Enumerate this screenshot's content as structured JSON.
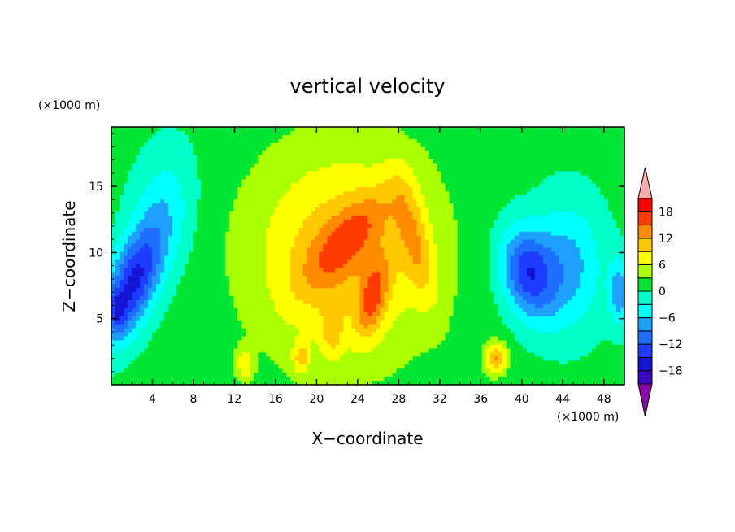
{
  "chart_data": {
    "type": "heatmap",
    "title": "vertical velocity",
    "xlabel": "X−coordinate",
    "ylabel": "Z−coordinate",
    "x_units": "(×1000 m)",
    "y_units": "(×1000 m)",
    "xlim": [
      0,
      50
    ],
    "ylim": [
      0,
      19.5
    ],
    "x_ticks": [
      4,
      8,
      12,
      16,
      20,
      24,
      28,
      32,
      36,
      40,
      44,
      48
    ],
    "x_tick_labels": [
      "4",
      "8",
      "12",
      "16",
      "20",
      "24",
      "28",
      "32",
      "36",
      "40",
      "44",
      "48"
    ],
    "y_ticks": [
      5,
      10,
      15
    ],
    "y_tick_labels": [
      "5",
      "10",
      "15"
    ],
    "colorbar": {
      "levels": [
        -21,
        -18,
        -15,
        -12,
        -9,
        -6,
        -3,
        0,
        3,
        6,
        9,
        12,
        15,
        18,
        21
      ],
      "tick_values": [
        -18,
        -12,
        -6,
        0,
        6,
        12,
        18
      ],
      "tick_labels": [
        "−18",
        "−12",
        "−6",
        "0",
        "6",
        "12",
        "18"
      ],
      "colors": [
        "#8a0aa8",
        "#3a0ac0",
        "#1414d2",
        "#1e3cff",
        "#1e6eff",
        "#1ea0ff",
        "#00ffff",
        "#00ffc8",
        "#00e632",
        "#aaff00",
        "#ffff00",
        "#ffc800",
        "#ff8c00",
        "#ff3c00",
        "#ff0000",
        "#ffaaaa"
      ],
      "extend": "both"
    },
    "features": [
      {
        "x": 2.0,
        "z": 7.5,
        "sx": 2.2,
        "sz": 4.5,
        "rot": 0.45,
        "amp": -16
      },
      {
        "x": 5.0,
        "z": 13.0,
        "sx": 3.0,
        "sz": 5.0,
        "rot": 0.2,
        "amp": -6
      },
      {
        "x": 0.6,
        "z": 5.5,
        "sx": 0.8,
        "sz": 1.5,
        "rot": 0,
        "amp": -6
      },
      {
        "x": 40.5,
        "z": 8.5,
        "sx": 2.5,
        "sz": 3.5,
        "rot": -0.35,
        "amp": -14
      },
      {
        "x": 44.5,
        "z": 9.0,
        "sx": 3.5,
        "sz": 5.0,
        "rot": 0,
        "amp": -8
      },
      {
        "x": 49.5,
        "z": 7.0,
        "sx": 1.0,
        "sz": 2.5,
        "rot": 0,
        "amp": -9
      },
      {
        "x": 22.5,
        "z": 10.0,
        "sx": 9.0,
        "sz": 8.0,
        "rot": 0,
        "amp": 10
      },
      {
        "x": 23.0,
        "z": 11.0,
        "sx": 2.0,
        "sz": 5.5,
        "rot": 0.9,
        "amp": 7
      },
      {
        "x": 29.5,
        "z": 11.0,
        "sx": 1.5,
        "sz": 5.0,
        "rot": -0.3,
        "amp": 7
      },
      {
        "x": 25.5,
        "z": 6.5,
        "sx": 1.3,
        "sz": 3.0,
        "rot": 0.3,
        "amp": 9
      },
      {
        "x": 21.5,
        "z": 4.0,
        "sx": 1.0,
        "sz": 2.0,
        "rot": 0,
        "amp": 5
      },
      {
        "x": 37.5,
        "z": 2.0,
        "sx": 1.1,
        "sz": 1.2,
        "rot": 0,
        "amp": 11
      },
      {
        "x": 13.0,
        "z": 1.5,
        "sx": 0.8,
        "sz": 1.2,
        "rot": 0,
        "amp": 7
      },
      {
        "x": 18.5,
        "z": 2.0,
        "sx": 0.8,
        "sz": 1.2,
        "rot": 0,
        "amp": 7
      }
    ]
  }
}
